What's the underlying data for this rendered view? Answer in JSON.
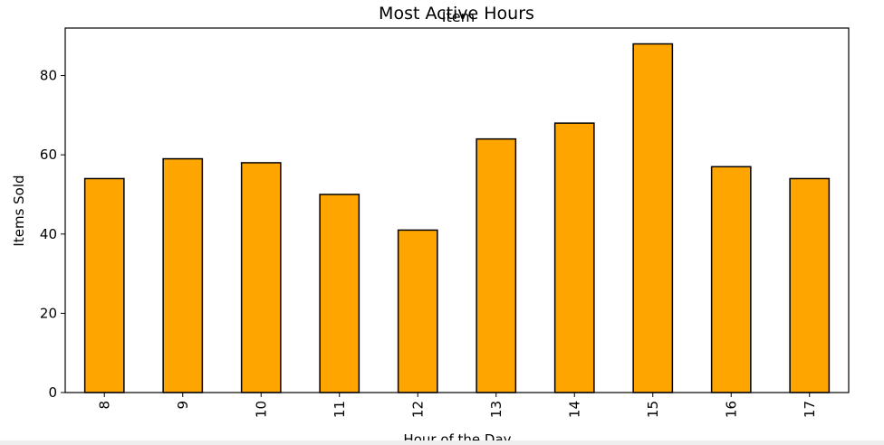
{
  "chart_data": {
    "type": "bar",
    "title": "Most Active Hours",
    "subtitle": "Item",
    "xlabel": "Hour of the Day",
    "ylabel": "Items Sold",
    "categories": [
      "8",
      "9",
      "10",
      "11",
      "12",
      "13",
      "14",
      "15",
      "16",
      "17"
    ],
    "values": [
      54,
      59,
      58,
      50,
      41,
      64,
      68,
      88,
      57,
      54
    ],
    "ylim": [
      0,
      92
    ],
    "yticks": [
      "0",
      "20",
      "40",
      "60",
      "80"
    ],
    "ytick_values": [
      0,
      20,
      40,
      60,
      80
    ],
    "bar_color": "#ffa500",
    "edge_color": "#000000",
    "grid": false,
    "legend": "none"
  }
}
